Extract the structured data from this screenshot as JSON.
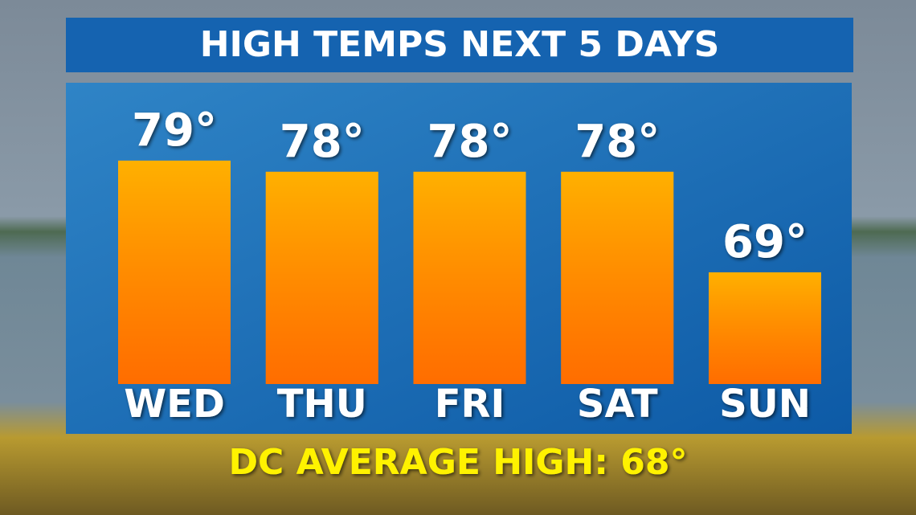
{
  "chart_data": {
    "type": "bar",
    "title": "HIGH TEMPS NEXT 5 DAYS",
    "categories": [
      "WED",
      "THU",
      "FRI",
      "SAT",
      "SUN"
    ],
    "values": [
      79,
      78,
      78,
      78,
      69
    ],
    "value_labels": [
      "79°",
      "78°",
      "78°",
      "78°",
      "69°"
    ],
    "color": "#ff8a00",
    "ylim": [
      59,
      80
    ],
    "annotation": "DC AVERAGE HIGH: 68°"
  }
}
